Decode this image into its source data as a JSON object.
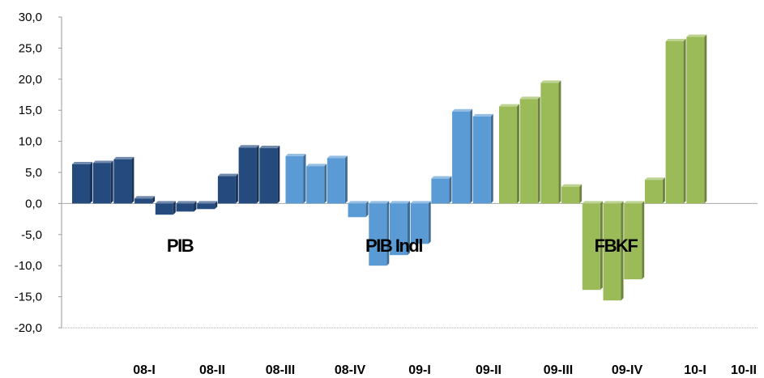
{
  "chart_data": {
    "type": "bar",
    "title": "",
    "xlabel": "",
    "ylabel": "",
    "ylim": [
      -20,
      30
    ],
    "yticks": [
      "30,0",
      "25,0",
      "20,0",
      "15,0",
      "10,0",
      "5,0",
      "0,0",
      "-5,0",
      "-10,0",
      "-15,0",
      "-20,0"
    ],
    "categories": [
      "08-I",
      "08-II",
      "08-III",
      "08-IV",
      "09-I",
      "09-II",
      "09-III",
      "09-IV",
      "10-I",
      "10-II"
    ],
    "series": [
      {
        "name": "PIB",
        "color": "#244a7e",
        "values": [
          6.3,
          6.5,
          7.1,
          0.8,
          -1.8,
          -1.3,
          -0.9,
          4.4,
          9.0,
          8.9
        ]
      },
      {
        "name": "PIB Indl",
        "color": "#5b9bd5",
        "values": [
          7.6,
          6.0,
          7.3,
          -2.2,
          -10.0,
          -8.3,
          -6.5,
          4.0,
          14.8,
          14.0
        ]
      },
      {
        "name": "FBKF",
        "color": "#9bbb59",
        "values": [
          15.6,
          16.8,
          19.4,
          2.7,
          -13.9,
          -15.6,
          -12.2,
          3.8,
          26.1,
          26.8
        ]
      }
    ],
    "group_labels": [
      "PIB",
      "PIB Indl",
      "FBKF"
    ],
    "grid": false,
    "legend": "none"
  }
}
